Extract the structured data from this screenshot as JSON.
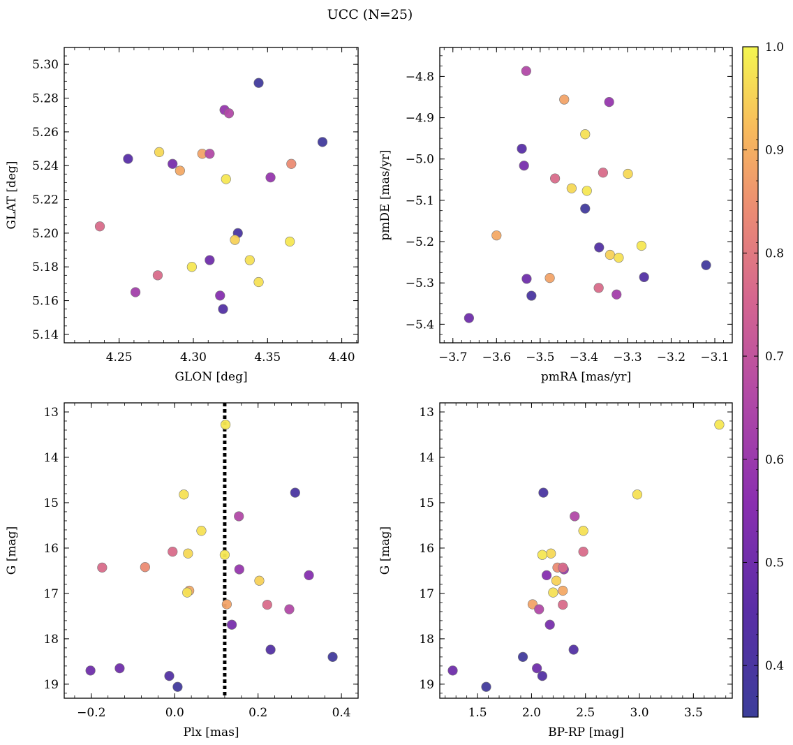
{
  "chart_data": {
    "type": "scatter",
    "title": "UCC (N=25)",
    "colorbar": {
      "colormap": "plasma",
      "min": 0.35,
      "max": 1.0,
      "ticks": [
        0.4,
        0.5,
        0.6,
        0.7,
        0.8,
        0.9,
        1.0
      ],
      "tick_labels": [
        "0.4",
        "0.5",
        "0.6",
        "0.7",
        "0.8",
        "0.9",
        "1.0"
      ]
    },
    "panels": [
      {
        "id": "glon-glat",
        "xlabel": "GLON [deg]",
        "ylabel": "GLAT [deg]",
        "xlim": [
          4.213,
          4.411
        ],
        "ylim": [
          5.135,
          5.31
        ],
        "y_inverted": false,
        "xticks": [
          4.25,
          4.3,
          4.35,
          4.4
        ],
        "xtick_labels": [
          "4.25",
          "4.30",
          "4.35",
          "4.40"
        ],
        "yticks": [
          5.14,
          5.16,
          5.18,
          5.2,
          5.22,
          5.24,
          5.26,
          5.28,
          5.3
        ],
        "ytick_labels": [
          "5.14",
          "5.16",
          "5.18",
          "5.20",
          "5.22",
          "5.24",
          "5.26",
          "5.28",
          "5.30"
        ],
        "points": [
          {
            "x": 4.344,
            "y": 5.289,
            "c": 0.37
          },
          {
            "x": 4.321,
            "y": 5.273,
            "c": 0.59
          },
          {
            "x": 4.324,
            "y": 5.271,
            "c": 0.66
          },
          {
            "x": 4.387,
            "y": 5.254,
            "c": 0.37
          },
          {
            "x": 4.277,
            "y": 5.248,
            "c": 0.96
          },
          {
            "x": 4.306,
            "y": 5.247,
            "c": 0.88
          },
          {
            "x": 4.311,
            "y": 5.247,
            "c": 0.66
          },
          {
            "x": 4.256,
            "y": 5.244,
            "c": 0.45
          },
          {
            "x": 4.286,
            "y": 5.241,
            "c": 0.52
          },
          {
            "x": 4.366,
            "y": 5.241,
            "c": 0.84
          },
          {
            "x": 4.291,
            "y": 5.237,
            "c": 0.89
          },
          {
            "x": 4.352,
            "y": 5.233,
            "c": 0.59
          },
          {
            "x": 4.322,
            "y": 5.232,
            "c": 0.98
          },
          {
            "x": 4.237,
            "y": 5.204,
            "c": 0.77
          },
          {
            "x": 4.33,
            "y": 5.2,
            "c": 0.4
          },
          {
            "x": 4.328,
            "y": 5.196,
            "c": 0.95
          },
          {
            "x": 4.365,
            "y": 5.195,
            "c": 0.98
          },
          {
            "x": 4.311,
            "y": 5.184,
            "c": 0.5
          },
          {
            "x": 4.338,
            "y": 5.184,
            "c": 0.97
          },
          {
            "x": 4.299,
            "y": 5.18,
            "c": 0.98
          },
          {
            "x": 4.276,
            "y": 5.175,
            "c": 0.77
          },
          {
            "x": 4.344,
            "y": 5.171,
            "c": 0.97
          },
          {
            "x": 4.261,
            "y": 5.165,
            "c": 0.62
          },
          {
            "x": 4.318,
            "y": 5.163,
            "c": 0.55
          },
          {
            "x": 4.32,
            "y": 5.155,
            "c": 0.43
          }
        ]
      },
      {
        "id": "pmra-pmde",
        "xlabel": "pmRA [mas/yr]",
        "ylabel": "pmDE [mas/yr]",
        "xlim": [
          -3.73,
          -3.06
        ],
        "ylim": [
          -5.445,
          -4.73
        ],
        "y_inverted": false,
        "xticks": [
          -3.7,
          -3.6,
          -3.5,
          -3.4,
          -3.3,
          -3.2,
          -3.1
        ],
        "xtick_labels": [
          "−3.7",
          "−3.6",
          "−3.5",
          "−3.4",
          "−3.3",
          "−3.2",
          "−3.1"
        ],
        "yticks": [
          -5.4,
          -5.3,
          -5.2,
          -5.1,
          -5.0,
          -4.9,
          -4.8
        ],
        "ytick_labels": [
          "−5.4",
          "−5.3",
          "−5.2",
          "−5.1",
          "−5.0",
          "−4.9",
          "−4.8"
        ],
        "points": [
          {
            "x": -3.532,
            "y": -4.787,
            "c": 0.66
          },
          {
            "x": -3.445,
            "y": -4.856,
            "c": 0.88
          },
          {
            "x": -3.342,
            "y": -4.862,
            "c": 0.59
          },
          {
            "x": -3.397,
            "y": -4.94,
            "c": 0.97
          },
          {
            "x": -3.542,
            "y": -4.975,
            "c": 0.45
          },
          {
            "x": -3.537,
            "y": -5.016,
            "c": 0.52
          },
          {
            "x": -3.356,
            "y": -5.033,
            "c": 0.77
          },
          {
            "x": -3.299,
            "y": -5.036,
            "c": 0.96
          },
          {
            "x": -3.466,
            "y": -5.047,
            "c": 0.77
          },
          {
            "x": -3.428,
            "y": -5.071,
            "c": 0.96
          },
          {
            "x": -3.393,
            "y": -5.077,
            "c": 0.98
          },
          {
            "x": -3.397,
            "y": -5.12,
            "c": 0.37
          },
          {
            "x": -3.6,
            "y": -5.185,
            "c": 0.89
          },
          {
            "x": -3.268,
            "y": -5.21,
            "c": 0.98
          },
          {
            "x": -3.365,
            "y": -5.214,
            "c": 0.43
          },
          {
            "x": -3.34,
            "y": -5.232,
            "c": 0.95
          },
          {
            "x": -3.32,
            "y": -5.239,
            "c": 0.97
          },
          {
            "x": -3.12,
            "y": -5.257,
            "c": 0.37
          },
          {
            "x": -3.262,
            "y": -5.286,
            "c": 0.43
          },
          {
            "x": -3.478,
            "y": -5.288,
            "c": 0.88
          },
          {
            "x": -3.531,
            "y": -5.29,
            "c": 0.5
          },
          {
            "x": -3.366,
            "y": -5.312,
            "c": 0.77
          },
          {
            "x": -3.325,
            "y": -5.328,
            "c": 0.62
          },
          {
            "x": -3.52,
            "y": -5.331,
            "c": 0.4
          },
          {
            "x": -3.663,
            "y": -5.385,
            "c": 0.5
          }
        ]
      },
      {
        "id": "plx-g",
        "xlabel": "Plx [mas]",
        "ylabel": "G [mag]",
        "xlim": [
          -0.265,
          0.44
        ],
        "ylim": [
          12.8,
          19.31
        ],
        "y_inverted": true,
        "vline": {
          "x": 0.12,
          "style": "dotted",
          "color": "#000000"
        },
        "xticks": [
          -0.2,
          0.0,
          0.2,
          0.4
        ],
        "xtick_labels": [
          "−0.2",
          "0.0",
          "0.2",
          "0.4"
        ],
        "yticks": [
          13,
          14,
          15,
          16,
          17,
          18,
          19
        ],
        "ytick_labels": [
          "13",
          "14",
          "15",
          "16",
          "17",
          "18",
          "19"
        ],
        "points": [
          {
            "x": 0.122,
            "y": 13.28,
            "c": 0.98
          },
          {
            "x": 0.289,
            "y": 14.78,
            "c": 0.4
          },
          {
            "x": 0.022,
            "y": 14.82,
            "c": 0.97
          },
          {
            "x": 0.154,
            "y": 15.3,
            "c": 0.66
          },
          {
            "x": 0.064,
            "y": 15.62,
            "c": 0.97
          },
          {
            "x": -0.005,
            "y": 16.08,
            "c": 0.77
          },
          {
            "x": 0.032,
            "y": 16.12,
            "c": 0.96
          },
          {
            "x": 0.12,
            "y": 16.15,
            "c": 0.98
          },
          {
            "x": -0.174,
            "y": 16.43,
            "c": 0.77
          },
          {
            "x": -0.071,
            "y": 16.42,
            "c": 0.84
          },
          {
            "x": 0.155,
            "y": 16.47,
            "c": 0.59
          },
          {
            "x": 0.322,
            "y": 16.6,
            "c": 0.55
          },
          {
            "x": 0.203,
            "y": 16.72,
            "c": 0.95
          },
          {
            "x": 0.035,
            "y": 16.94,
            "c": 0.89
          },
          {
            "x": 0.03,
            "y": 16.98,
            "c": 0.97
          },
          {
            "x": 0.125,
            "y": 17.24,
            "c": 0.88
          },
          {
            "x": 0.222,
            "y": 17.25,
            "c": 0.77
          },
          {
            "x": 0.275,
            "y": 17.35,
            "c": 0.66
          },
          {
            "x": 0.137,
            "y": 17.69,
            "c": 0.52
          },
          {
            "x": 0.23,
            "y": 18.24,
            "c": 0.43
          },
          {
            "x": 0.379,
            "y": 18.4,
            "c": 0.37
          },
          {
            "x": -0.132,
            "y": 18.65,
            "c": 0.5
          },
          {
            "x": -0.202,
            "y": 18.7,
            "c": 0.5
          },
          {
            "x": -0.013,
            "y": 18.82,
            "c": 0.43
          },
          {
            "x": 0.007,
            "y": 19.06,
            "c": 0.37
          }
        ]
      },
      {
        "id": "bprp-g",
        "xlabel": "BP-RP [mag]",
        "ylabel": "G [mag]",
        "xlim": [
          1.15,
          3.86
        ],
        "ylim": [
          12.8,
          19.31
        ],
        "y_inverted": true,
        "xticks": [
          1.5,
          2.0,
          2.5,
          3.0,
          3.5
        ],
        "xtick_labels": [
          "1.5",
          "2.0",
          "2.5",
          "3.0",
          "3.5"
        ],
        "yticks": [
          13,
          14,
          15,
          16,
          17,
          18,
          19
        ],
        "ytick_labels": [
          "13",
          "14",
          "15",
          "16",
          "17",
          "18",
          "19"
        ],
        "points": [
          {
            "x": 3.74,
            "y": 13.28,
            "c": 0.98
          },
          {
            "x": 2.11,
            "y": 14.78,
            "c": 0.4
          },
          {
            "x": 2.98,
            "y": 14.82,
            "c": 0.97
          },
          {
            "x": 2.4,
            "y": 15.3,
            "c": 0.66
          },
          {
            "x": 2.48,
            "y": 15.62,
            "c": 0.97
          },
          {
            "x": 2.48,
            "y": 16.08,
            "c": 0.77
          },
          {
            "x": 2.18,
            "y": 16.12,
            "c": 0.96
          },
          {
            "x": 2.1,
            "y": 16.15,
            "c": 0.98
          },
          {
            "x": 2.24,
            "y": 16.43,
            "c": 0.84
          },
          {
            "x": 2.3,
            "y": 16.47,
            "c": 0.59
          },
          {
            "x": 2.29,
            "y": 16.43,
            "c": 0.77
          },
          {
            "x": 2.14,
            "y": 16.6,
            "c": 0.55
          },
          {
            "x": 2.23,
            "y": 16.72,
            "c": 0.95
          },
          {
            "x": 2.29,
            "y": 16.94,
            "c": 0.89
          },
          {
            "x": 2.2,
            "y": 16.98,
            "c": 0.97
          },
          {
            "x": 2.01,
            "y": 17.24,
            "c": 0.88
          },
          {
            "x": 2.29,
            "y": 17.25,
            "c": 0.77
          },
          {
            "x": 2.07,
            "y": 17.35,
            "c": 0.66
          },
          {
            "x": 2.17,
            "y": 17.69,
            "c": 0.52
          },
          {
            "x": 2.39,
            "y": 18.24,
            "c": 0.43
          },
          {
            "x": 1.92,
            "y": 18.4,
            "c": 0.37
          },
          {
            "x": 2.05,
            "y": 18.65,
            "c": 0.5
          },
          {
            "x": 1.27,
            "y": 18.7,
            "c": 0.5
          },
          {
            "x": 2.1,
            "y": 18.82,
            "c": 0.43
          },
          {
            "x": 1.58,
            "y": 19.06,
            "c": 0.37
          }
        ]
      }
    ]
  }
}
